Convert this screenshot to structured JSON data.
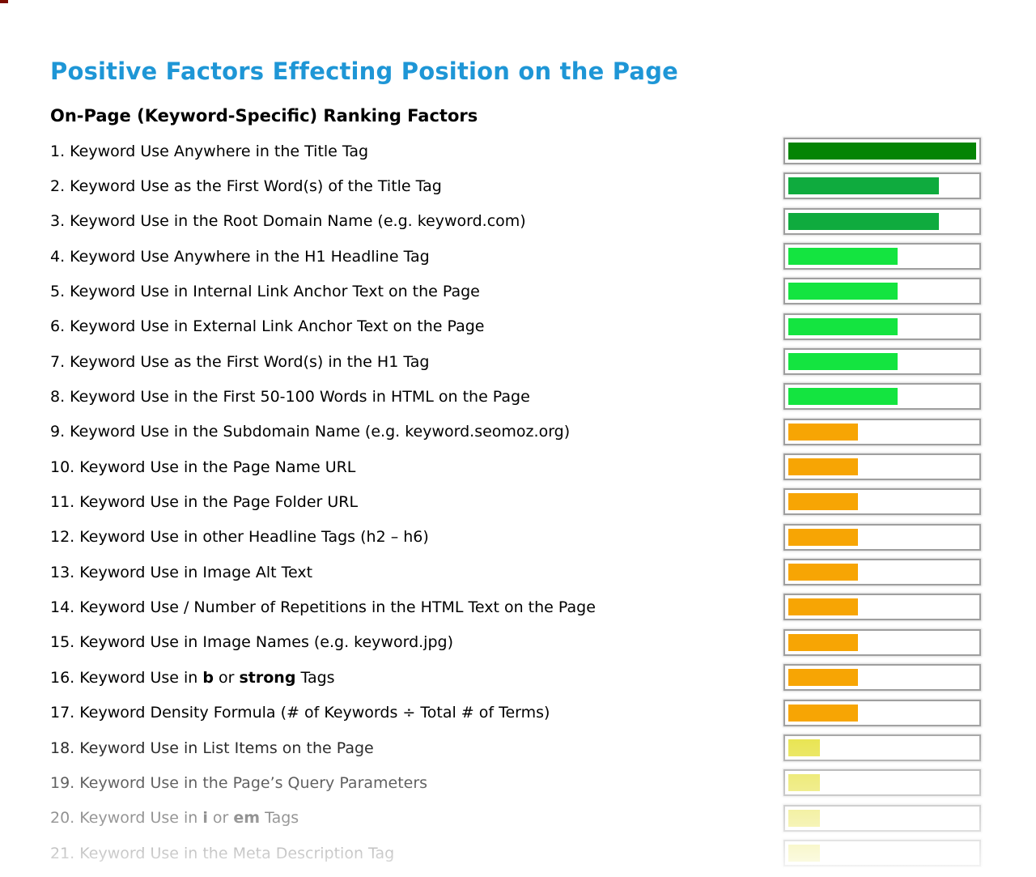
{
  "page": {
    "title": "Positive Factors Effecting Position on the Page",
    "subtitle": "On-Page (Keyword-Specific) Ranking Factors"
  },
  "colors": {
    "title_blue": "#1e96d6",
    "bar_border_gray": "#9f9f9f",
    "dark_green": "#048404",
    "medium_green": "#0fab3e",
    "bright_green": "#14e440",
    "orange": "#f7a504",
    "yellow": "#e6e13c"
  },
  "chart_data": {
    "type": "bar",
    "orientation": "horizontal",
    "title": "Positive Factors Effecting Position on the Page",
    "subtitle": "On-Page (Keyword-Specific) Ranking Factors",
    "xlim": [
      0,
      100
    ],
    "ylabel": "",
    "xlabel": "",
    "grid": false,
    "legend": false,
    "value_unit": "percent of bar track filled",
    "categories": [
      "1. Keyword Use Anywhere in the Title Tag",
      "2. Keyword Use as the First Word(s) of the Title Tag",
      "3. Keyword Use in the Root Domain Name (e.g. keyword.com)",
      "4. Keyword Use Anywhere in the H1 Headline Tag",
      "5. Keyword Use in Internal Link Anchor Text on the Page",
      "6. Keyword Use in External Link Anchor Text on the Page",
      "7. Keyword Use as the First Word(s) in the H1 Tag",
      "8. Keyword Use in the First 50-100 Words in HTML on the Page",
      "9. Keyword Use in the Subdomain Name (e.g. keyword.seomoz.org)",
      "10. Keyword Use in the Page Name URL",
      "11. Keyword Use in the Page Folder URL",
      "12. Keyword Use in other Headline Tags (h2 – h6)",
      "13. Keyword Use in Image Alt Text",
      "14. Keyword Use / Number of Repetitions in the HTML Text on the Page",
      "15. Keyword Use in Image Names (e.g. keyword.jpg)",
      "16. Keyword Use in b or strong Tags",
      "17. Keyword Density Formula (# of Keywords ÷ Total # of Terms)",
      "18. Keyword Use in List Items on the Page",
      "19. Keyword Use in the Page’s Query Parameters",
      "20. Keyword Use in i or em Tags",
      "21. Keyword Use in the Meta Description Tag"
    ],
    "values": [
      100,
      80,
      80,
      58,
      58,
      58,
      58,
      58,
      37,
      37,
      37,
      37,
      37,
      37,
      37,
      37,
      37,
      17,
      17,
      17,
      17
    ],
    "bar_colors": [
      "#048404",
      "#0fab3e",
      "#0fab3e",
      "#14e440",
      "#14e440",
      "#14e440",
      "#14e440",
      "#14e440",
      "#f7a504",
      "#f7a504",
      "#f7a504",
      "#f7a504",
      "#f7a504",
      "#f7a504",
      "#f7a504",
      "#f7a504",
      "#f7a504",
      "#e6e13c",
      "#e6e13c",
      "#e6e13c",
      "#e6e13c"
    ]
  },
  "factors": [
    {
      "num": "1.",
      "value": 100,
      "color": "#048404",
      "segments": [
        {
          "t": "Keyword Use Anywhere in the Title Tag"
        }
      ]
    },
    {
      "num": "2.",
      "value": 80,
      "color": "#0fab3e",
      "segments": [
        {
          "t": "Keyword Use as the First Word(s) of the Title Tag"
        }
      ]
    },
    {
      "num": "3.",
      "value": 80,
      "color": "#0fab3e",
      "segments": [
        {
          "t": "Keyword Use in the Root Domain Name (e.g. keyword.com)"
        }
      ]
    },
    {
      "num": "4.",
      "value": 58,
      "color": "#14e440",
      "segments": [
        {
          "t": "Keyword Use Anywhere in the H1 Headline Tag"
        }
      ]
    },
    {
      "num": "5.",
      "value": 58,
      "color": "#14e440",
      "segments": [
        {
          "t": "Keyword Use in Internal Link Anchor Text on the Page"
        }
      ]
    },
    {
      "num": "6.",
      "value": 58,
      "color": "#14e440",
      "segments": [
        {
          "t": "Keyword Use in External Link Anchor Text on the Page"
        }
      ]
    },
    {
      "num": "7.",
      "value": 58,
      "color": "#14e440",
      "segments": [
        {
          "t": "Keyword Use as the First Word(s) in the H1 Tag"
        }
      ]
    },
    {
      "num": "8.",
      "value": 58,
      "color": "#14e440",
      "segments": [
        {
          "t": "Keyword Use in the First 50-100 Words in HTML on the Page"
        }
      ]
    },
    {
      "num": "9.",
      "value": 37,
      "color": "#f7a504",
      "segments": [
        {
          "t": "Keyword Use in the Subdomain Name (e.g. keyword.seomoz.org)"
        }
      ]
    },
    {
      "num": "10.",
      "value": 37,
      "color": "#f7a504",
      "segments": [
        {
          "t": "Keyword Use in the Page Name URL"
        }
      ]
    },
    {
      "num": "11.",
      "value": 37,
      "color": "#f7a504",
      "segments": [
        {
          "t": "Keyword Use in the Page Folder URL"
        }
      ]
    },
    {
      "num": "12.",
      "value": 37,
      "color": "#f7a504",
      "segments": [
        {
          "t": "Keyword Use in other Headline Tags (h2 – h6)"
        }
      ]
    },
    {
      "num": "13.",
      "value": 37,
      "color": "#f7a504",
      "segments": [
        {
          "t": "Keyword Use in Image Alt Text"
        }
      ]
    },
    {
      "num": "14.",
      "value": 37,
      "color": "#f7a504",
      "segments": [
        {
          "t": "Keyword Use / Number of Repetitions in the HTML Text on the Page"
        }
      ]
    },
    {
      "num": "15.",
      "value": 37,
      "color": "#f7a504",
      "segments": [
        {
          "t": "Keyword Use in Image Names (e.g. keyword.jpg)"
        }
      ]
    },
    {
      "num": "16.",
      "value": 37,
      "color": "#f7a504",
      "segments": [
        {
          "t": "Keyword Use in "
        },
        {
          "t": "b",
          "b": true
        },
        {
          "t": " or "
        },
        {
          "t": "strong",
          "b": true
        },
        {
          "t": " Tags"
        }
      ]
    },
    {
      "num": "17.",
      "value": 37,
      "color": "#f7a504",
      "segments": [
        {
          "t": "Keyword Density Formula (# of Keywords ÷ Total # of Terms)"
        }
      ]
    },
    {
      "num": "18.",
      "value": 17,
      "color": "#e6e13c",
      "segments": [
        {
          "t": "Keyword Use in List Items on the Page"
        }
      ]
    },
    {
      "num": "19.",
      "value": 17,
      "color": "#e6e13c",
      "segments": [
        {
          "t": "Keyword Use in the Page’s Query Parameters"
        }
      ]
    },
    {
      "num": "20.",
      "value": 17,
      "color": "#e6e13c",
      "segments": [
        {
          "t": "Keyword Use in "
        },
        {
          "t": "i",
          "b": true
        },
        {
          "t": " or "
        },
        {
          "t": "em",
          "b": true
        },
        {
          "t": " Tags"
        }
      ]
    },
    {
      "num": "21.",
      "value": 17,
      "color": "#e6e13c",
      "segments": [
        {
          "t": "Keyword Use in the Meta Description Tag"
        }
      ]
    }
  ]
}
